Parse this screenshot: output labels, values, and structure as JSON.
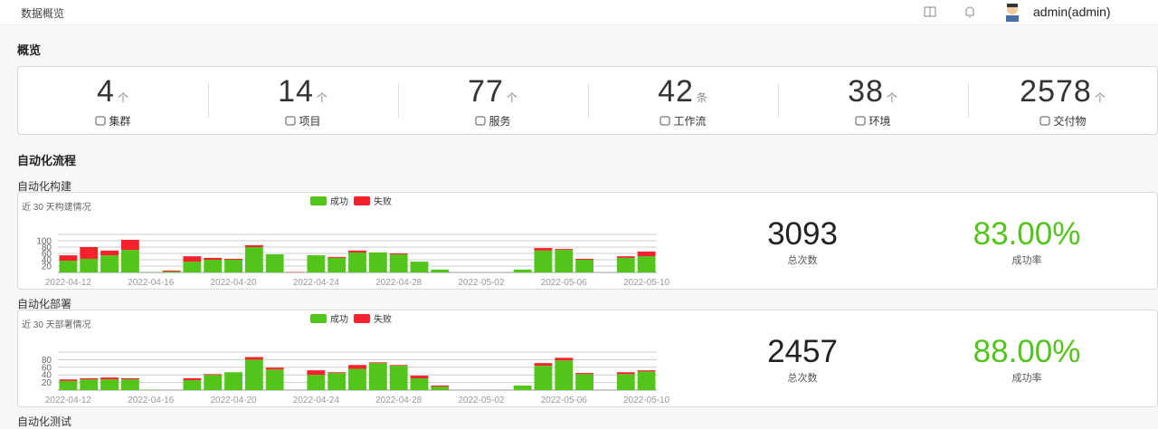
{
  "header": {
    "title": "数据概览",
    "user": "admin(admin)"
  },
  "overview": {
    "title": "概览",
    "stats": [
      {
        "value": 4,
        "unit": "个",
        "label": "集群"
      },
      {
        "value": 14,
        "unit": "个",
        "label": "项目"
      },
      {
        "value": 77,
        "unit": "个",
        "label": "服务"
      },
      {
        "value": 42,
        "unit": "条",
        "label": "工作流"
      },
      {
        "value": 38,
        "unit": "个",
        "label": "环境"
      },
      {
        "value": 2578,
        "unit": "个",
        "label": "交付物"
      }
    ]
  },
  "automation": {
    "title": "自动化流程",
    "next_title": "自动化测试",
    "panels": [
      {
        "title": "自动化构建",
        "chart": {
          "type": "bar",
          "stacked": true,
          "subtitle": "近 30 天构建情况",
          "categories": [
            "2022-04-12",
            null,
            null,
            null,
            "2022-04-16",
            null,
            null,
            null,
            "2022-04-20",
            null,
            null,
            null,
            "2022-04-24",
            null,
            null,
            null,
            "2022-04-28",
            null,
            null,
            null,
            "2022-05-02",
            null,
            null,
            null,
            "2022-05-06",
            null,
            null,
            null,
            "2022-05-10"
          ],
          "series": [
            {
              "name": "成功",
              "color": "#52c41a",
              "values": [
                37,
                43,
                54,
                71,
                1,
                3,
                34,
                40,
                40,
                80,
                57,
                0,
                54,
                46,
                63,
                63,
                57,
                34,
                9,
                0,
                0,
                0,
                9,
                69,
                71,
                40,
                0,
                46,
                51
              ]
            },
            {
              "name": "失败",
              "color": "#f5222d",
              "values": [
                17,
                37,
                15,
                32,
                0,
                3,
                17,
                6,
                3,
                6,
                0,
                1,
                0,
                3,
                6,
                0,
                3,
                0,
                0,
                0,
                0,
                0,
                0,
                8,
                3,
                3,
                0,
                5,
                15
              ]
            }
          ],
          "ylim": [
            0,
            120
          ],
          "yticks": [
            20,
            40,
            60,
            80,
            100
          ],
          "grid": true
        },
        "total": {
          "value": 3093,
          "label": "总次数"
        },
        "rate": {
          "value": "83.00%",
          "label": "成功率"
        }
      },
      {
        "title": "自动化部署",
        "chart": {
          "type": "bar",
          "stacked": true,
          "subtitle": "近 30 天部署情况",
          "categories": [
            "2022-04-12",
            null,
            null,
            null,
            "2022-04-16",
            null,
            null,
            null,
            "2022-04-20",
            null,
            null,
            null,
            "2022-04-24",
            null,
            null,
            null,
            "2022-04-28",
            null,
            null,
            null,
            "2022-05-02",
            null,
            null,
            null,
            "2022-05-06",
            null,
            null,
            null,
            "2022-05-10"
          ],
          "series": [
            {
              "name": "成功",
              "color": "#52c41a",
              "values": [
                24,
                28,
                28,
                28,
                1,
                0,
                26,
                40,
                47,
                80,
                54,
                0,
                40,
                45,
                56,
                71,
                64,
                31,
                9,
                0,
                0,
                0,
                12,
                64,
                78,
                42,
                0,
                42,
                49
              ]
            },
            {
              "name": "失败",
              "color": "#f5222d",
              "values": [
                4,
                3,
                5,
                3,
                0,
                0,
                5,
                2,
                0,
                7,
                5,
                0,
                12,
                2,
                10,
                2,
                2,
                7,
                3,
                0,
                0,
                0,
                0,
                7,
                7,
                3,
                0,
                5,
                3
              ]
            }
          ],
          "ylim": [
            0,
            100
          ],
          "yticks": [
            20,
            40,
            60,
            80
          ],
          "grid": true
        },
        "total": {
          "value": 2457,
          "label": "总次数"
        },
        "rate": {
          "value": "88.00%",
          "label": "成功率"
        }
      }
    ]
  }
}
